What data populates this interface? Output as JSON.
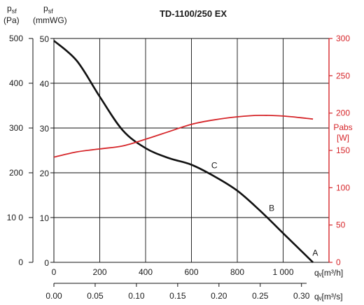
{
  "chart_data": {
    "type": "line",
    "title": "TD-1100/250 EX",
    "left_axes": [
      {
        "symbol": "p",
        "sub": "sf",
        "unit": "(Pa)",
        "ticks": [
          "500",
          "400",
          "300",
          "200",
          "10 0",
          "0"
        ],
        "range": [
          0,
          500
        ]
      },
      {
        "symbol": "p",
        "sub": "sf",
        "unit": "(mmWG)",
        "ticks": [
          "50",
          "40",
          "30",
          "20",
          "10",
          "0"
        ],
        "range": [
          0,
          50
        ]
      }
    ],
    "right_axis": {
      "title": "Pabs",
      "unit": "[W]",
      "ticks": [
        "300",
        "250",
        "200",
        "150",
        "100",
        "50",
        "0"
      ],
      "range": [
        0,
        300
      ],
      "color": "#d6262a"
    },
    "x_axis_m3h": {
      "label": "qᵥ[m³/h]",
      "ticks": [
        "0",
        "200",
        "400",
        "600",
        "800",
        "1 000"
      ],
      "range": [
        0,
        1200
      ]
    },
    "x_axis_m3s": {
      "label": "qᵥ[m³/s]",
      "ticks": [
        "0.00",
        "0.05",
        "0.10",
        "0.15",
        "0.20",
        "0.25",
        "0.30"
      ]
    },
    "series": [
      {
        "color": "#111111",
        "axis": "mmWG",
        "points": [
          [
            0,
            49.5
          ],
          [
            100,
            45
          ],
          [
            200,
            37
          ],
          [
            300,
            29.5
          ],
          [
            400,
            25.5
          ],
          [
            500,
            23.3
          ],
          [
            600,
            21.8
          ],
          [
            700,
            19.2
          ],
          [
            800,
            16
          ],
          [
            900,
            11.5
          ],
          [
            1000,
            6.5
          ],
          [
            1100,
            1.5
          ],
          [
            1130,
            0
          ]
        ]
      },
      {
        "color": "#d6262a",
        "axis": "W",
        "points": [
          [
            0,
            141
          ],
          [
            100,
            148
          ],
          [
            200,
            152
          ],
          [
            300,
            156
          ],
          [
            400,
            165
          ],
          [
            500,
            175
          ],
          [
            600,
            185
          ],
          [
            700,
            191
          ],
          [
            800,
            195
          ],
          [
            900,
            197
          ],
          [
            1000,
            196
          ],
          [
            1100,
            193
          ],
          [
            1130,
            192
          ]
        ]
      }
    ],
    "annotations": [
      {
        "text": "C",
        "x": 700,
        "y": 21
      },
      {
        "text": "B",
        "x": 950,
        "y": 11.5
      },
      {
        "text": "A",
        "x": 1140,
        "y": 1.5
      }
    ],
    "grid": true
  }
}
